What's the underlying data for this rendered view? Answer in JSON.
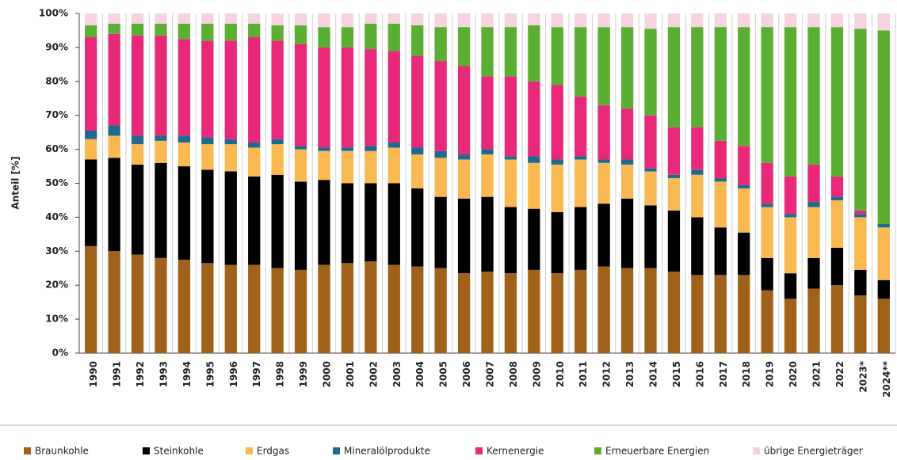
{
  "chart_data": {
    "type": "bar",
    "stacked": true,
    "y_label": "Anteil [%]",
    "categories": [
      "1990",
      "1991",
      "1992",
      "1993",
      "1994",
      "1995",
      "1996",
      "1997",
      "1998",
      "1999",
      "2000",
      "2001",
      "2002",
      "2003",
      "2004",
      "2005",
      "2006",
      "2007",
      "2008",
      "2009",
      "2010",
      "2011",
      "2012",
      "2013",
      "2014",
      "2015",
      "2016",
      "2017",
      "2018",
      "2019",
      "2020",
      "2021",
      "2022",
      "2023*",
      "2024**"
    ],
    "series": [
      {
        "name": "Braunkohle",
        "color": "#a0621a",
        "values": [
          31.5,
          30,
          29,
          28,
          27.5,
          26.5,
          26,
          26,
          25,
          24.5,
          26,
          26.5,
          27,
          26,
          25.5,
          25,
          23.5,
          24,
          23.5,
          24.5,
          23.5,
          24.5,
          25.5,
          25,
          25,
          24,
          23,
          23,
          23,
          18.5,
          16,
          19,
          20,
          17,
          16
        ]
      },
      {
        "name": "Steinkohle",
        "color": "#000000",
        "values": [
          25.5,
          27.5,
          26.5,
          28,
          27.5,
          27.5,
          27.5,
          26,
          27.5,
          26,
          25,
          23.5,
          23,
          24,
          23,
          21,
          22,
          22,
          19.5,
          18,
          18,
          18.5,
          18.5,
          20.5,
          18.5,
          18,
          17,
          14,
          12.5,
          9.5,
          7.5,
          9,
          11,
          7.5,
          5.5
        ]
      },
      {
        "name": "Erdgas",
        "color": "#f9b851",
        "values": [
          6,
          6.5,
          6,
          6.5,
          7,
          7.5,
          8,
          8.5,
          9,
          9.5,
          8.5,
          9.5,
          9.5,
          10.5,
          10,
          11.5,
          11.5,
          12.5,
          14,
          13.5,
          14,
          14,
          12,
          10,
          10,
          9.5,
          12.5,
          13.5,
          13,
          15,
          16.5,
          15,
          14,
          15.5,
          15.5
        ]
      },
      {
        "name": "Mineralölprodukte",
        "color": "#1f6b8f",
        "values": [
          2.5,
          3,
          2.5,
          1.5,
          2,
          2,
          1.5,
          1.5,
          1.5,
          1,
          1,
          1,
          1.5,
          1.5,
          2,
          2,
          1.5,
          1.5,
          1,
          2,
          1.5,
          1,
          1,
          1.5,
          1,
          1,
          1.5,
          1,
          1,
          1,
          1,
          1.5,
          1,
          1,
          1
        ]
      },
      {
        "name": "Kernenergie",
        "color": "#e8297a",
        "values": [
          27.5,
          27,
          29.5,
          29.5,
          28.5,
          28.5,
          29,
          31,
          29,
          30,
          29.5,
          29.5,
          28.5,
          27,
          27,
          26.5,
          26,
          21.5,
          23.5,
          22,
          22,
          17.5,
          16,
          15,
          15.5,
          14,
          12.5,
          11,
          11.5,
          12,
          11,
          11,
          6,
          1,
          0
        ]
      },
      {
        "name": "Erneuerbare Energien",
        "color": "#5aaf32",
        "values": [
          3.5,
          3,
          3.5,
          3.5,
          4.5,
          5,
          5,
          4,
          4.5,
          5.5,
          6,
          6,
          7.5,
          8,
          9,
          10,
          11.5,
          14.5,
          14.5,
          16.5,
          17,
          20.5,
          23,
          24,
          25.5,
          29.5,
          29.5,
          33.5,
          35,
          40,
          44,
          40.5,
          44,
          53.5,
          57
        ]
      },
      {
        "name": "übrige Energieträger",
        "color": "#f7d3df",
        "values": [
          3.5,
          3,
          3,
          3,
          3,
          3,
          3,
          3,
          3.5,
          3.5,
          4,
          4,
          3,
          3,
          3.5,
          4,
          4,
          4,
          4,
          3.5,
          4,
          4,
          4,
          4,
          4.5,
          4,
          4,
          4,
          4,
          4,
          4,
          4,
          4,
          4.5,
          5
        ]
      }
    ],
    "ylim": [
      0,
      100
    ],
    "yticks": [
      {
        "value": 0,
        "label": "0%"
      },
      {
        "value": 10,
        "label": "10%"
      },
      {
        "value": 20,
        "label": "20%"
      },
      {
        "value": 30,
        "label": "30%"
      },
      {
        "value": 40,
        "label": "40%"
      },
      {
        "value": 50,
        "label": "50%"
      },
      {
        "value": 60,
        "label": "60%"
      },
      {
        "value": 70,
        "label": "70%"
      },
      {
        "value": 80,
        "label": "80%"
      },
      {
        "value": 90,
        "label": "90%"
      },
      {
        "value": 100,
        "label": "100%"
      }
    ],
    "grid": false
  }
}
